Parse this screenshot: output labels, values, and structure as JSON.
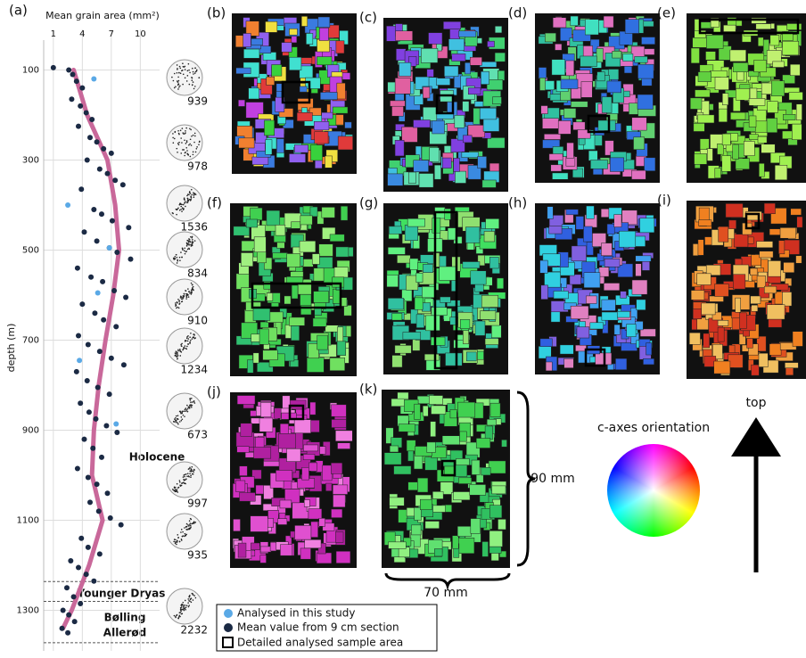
{
  "chart_data": {
    "type": "scatter",
    "label": "(a)",
    "xlabel": "Mean grain area (mm²)",
    "ylabel": "depth (m)",
    "xlim": [
      0,
      12
    ],
    "xticks": [
      1,
      4,
      7,
      10
    ],
    "ylim": [
      10,
      1390
    ],
    "yticks": [
      100,
      300,
      500,
      700,
      900,
      1100,
      1300
    ],
    "grid": true,
    "series": [
      {
        "name": "Analysed in this study",
        "color": "#5aa9e6",
        "x": [
          5.2,
          2.5,
          6.8,
          5.6,
          3.7,
          7.5
        ],
        "y": [
          120,
          400,
          495,
          595,
          745,
          886
        ]
      },
      {
        "name": "Mean value from 9 cm section",
        "color": "#1b2a44",
        "x": [
          1.0,
          2.6,
          3.0,
          3.4,
          4.0,
          2.9,
          3.8,
          4.4,
          5.0,
          3.6,
          4.8,
          5.5,
          6.2,
          7.0,
          4.5,
          5.8,
          6.6,
          7.4,
          8.2,
          3.9,
          5.2,
          6.0,
          7.1,
          8.8,
          4.2,
          5.5,
          6.8,
          7.6,
          9.0,
          3.5,
          4.9,
          6.1,
          7.3,
          8.5,
          4.0,
          5.3,
          6.2,
          7.5,
          3.6,
          4.6,
          5.8,
          7.0,
          8.3,
          3.4,
          4.5,
          5.6,
          6.8,
          3.8,
          4.7,
          5.4,
          6.5,
          7.6,
          4.2,
          5.1,
          6.0,
          3.5,
          4.6,
          5.5,
          6.6,
          4.8,
          5.7,
          6.9,
          8.0,
          3.9,
          4.6,
          5.8,
          2.8,
          3.6,
          4.4,
          5.2,
          2.4,
          3.1,
          3.8,
          2.0,
          2.6,
          3.2,
          1.9,
          2.5
        ],
        "y": [
          95,
          100,
          110,
          125,
          140,
          165,
          180,
          195,
          210,
          225,
          250,
          260,
          275,
          285,
          300,
          320,
          330,
          345,
          355,
          365,
          410,
          420,
          435,
          450,
          460,
          480,
          495,
          505,
          520,
          540,
          560,
          570,
          590,
          605,
          620,
          640,
          655,
          670,
          690,
          710,
          725,
          740,
          755,
          770,
          790,
          805,
          820,
          840,
          860,
          875,
          890,
          905,
          920,
          940,
          960,
          985,
          1005,
          1020,
          1040,
          1060,
          1080,
          1095,
          1110,
          1140,
          1160,
          1175,
          1190,
          1205,
          1220,
          1235,
          1250,
          1270,
          1285,
          1300,
          1310,
          1325,
          1340,
          1350
        ]
      }
    ],
    "trend": {
      "color": "#c9689a",
      "x": [
        3.1,
        4.5,
        6.6,
        7.4,
        7.8,
        7.2,
        6.4,
        5.7,
        5.2,
        5.0,
        6.1,
        4.7,
        2.9,
        2.0
      ],
      "y": [
        100,
        200,
        300,
        400,
        500,
        600,
        700,
        800,
        900,
        1000,
        1100,
        1200,
        1300,
        1340
      ]
    },
    "boundaries": [
      1236,
      1280,
      1372
    ],
    "zones": [
      "Holocene",
      "Younger Dryas",
      "Bølling",
      "Allerød"
    ]
  },
  "fabrics": [
    939,
    978,
    1536,
    834,
    910,
    1234,
    673,
    997,
    935,
    2232
  ],
  "panels": [
    "(b)",
    "(c)",
    "(d)",
    "(e)",
    "(f)",
    "(g)",
    "(h)",
    "(i)",
    "(j)",
    "(k)"
  ],
  "legend_extra": "Detailed analysed sample area",
  "scale": {
    "height": "90 mm",
    "width": "70 mm"
  },
  "orientation": {
    "title": "c-axes orientation",
    "arrow": "top"
  }
}
